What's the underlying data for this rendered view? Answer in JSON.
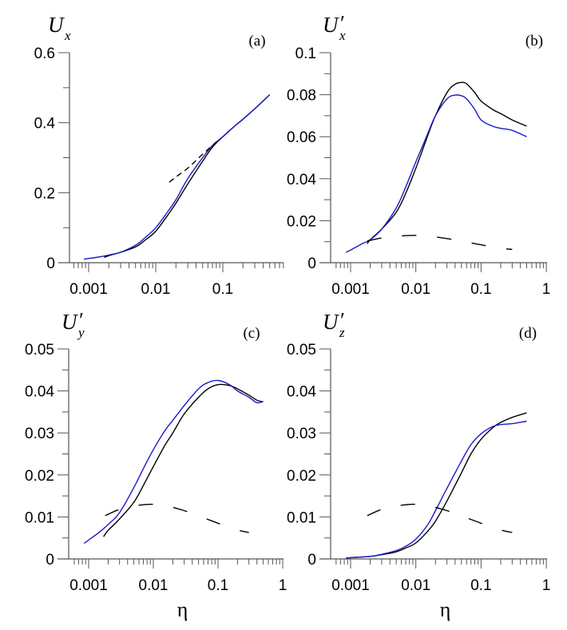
{
  "chart_data": [
    {
      "id": "a",
      "type": "line",
      "panel_label": "(a)",
      "ylabel": {
        "main": "U",
        "sub": "x",
        "prime": false
      },
      "xlabel": "",
      "xscale": "log",
      "xlim": [
        0.0005,
        0.6
      ],
      "ylim": [
        0,
        0.6
      ],
      "yticks_major": [
        0,
        0.2,
        0.4,
        0.6
      ],
      "yticks_major_labels": [
        "0",
        "0.2",
        "0.4",
        "0.6"
      ],
      "yticks_minor": [
        0.1,
        0.3,
        0.5
      ],
      "xticks_major": [
        0.001,
        0.01,
        0.1
      ],
      "xticks_major_labels": [
        "0.001",
        "0.01",
        "0.1"
      ],
      "series": [
        {
          "name": "black-solid",
          "color": "#000000",
          "style": "solid",
          "x": [
            0.0017,
            0.002,
            0.003,
            0.005,
            0.007,
            0.01,
            0.015,
            0.02,
            0.03,
            0.05,
            0.07,
            0.1,
            0.15,
            0.2,
            0.3,
            0.5
          ],
          "y": [
            0.015,
            0.02,
            0.03,
            0.045,
            0.065,
            0.09,
            0.135,
            0.17,
            0.225,
            0.29,
            0.33,
            0.36,
            0.39,
            0.41,
            0.44,
            0.48
          ]
        },
        {
          "name": "blue-solid",
          "color": "#1a1acc",
          "style": "solid",
          "x": [
            0.00085,
            0.001,
            0.0015,
            0.002,
            0.003,
            0.005,
            0.007,
            0.01,
            0.015,
            0.02,
            0.03,
            0.05,
            0.07,
            0.1,
            0.15,
            0.2,
            0.3,
            0.5
          ],
          "y": [
            0.01,
            0.012,
            0.017,
            0.022,
            0.03,
            0.05,
            0.072,
            0.1,
            0.145,
            0.18,
            0.24,
            0.3,
            0.335,
            0.36,
            0.39,
            0.41,
            0.44,
            0.48
          ]
        },
        {
          "name": "black-dashed",
          "color": "#000000",
          "style": "short-dash",
          "x": [
            0.016,
            0.02,
            0.03,
            0.05,
            0.08
          ],
          "y": [
            0.23,
            0.245,
            0.27,
            0.31,
            0.345
          ]
        }
      ]
    },
    {
      "id": "b",
      "type": "line",
      "panel_label": "(b)",
      "ylabel": {
        "main": "U",
        "sub": "x",
        "prime": true
      },
      "xlabel": "",
      "xscale": "log",
      "xlim": [
        0.0005,
        1
      ],
      "ylim": [
        0,
        0.1
      ],
      "yticks_major": [
        0,
        0.02,
        0.04,
        0.06,
        0.08,
        0.1
      ],
      "yticks_major_labels": [
        "0",
        "0.02",
        "0.04",
        "0.06",
        "0.08",
        "0.1"
      ],
      "yticks_minor": [
        0.01,
        0.03,
        0.05,
        0.07,
        0.09
      ],
      "xticks_major": [
        0.001,
        0.01,
        0.1,
        1
      ],
      "xticks_major_labels": [
        "0.001",
        "0.01",
        "0.1",
        "1"
      ],
      "series": [
        {
          "name": "black-solid",
          "color": "#000000",
          "style": "solid",
          "x": [
            0.0018,
            0.002,
            0.003,
            0.005,
            0.007,
            0.01,
            0.015,
            0.02,
            0.03,
            0.04,
            0.05,
            0.06,
            0.08,
            0.1,
            0.15,
            0.2,
            0.3,
            0.5
          ],
          "y": [
            0.009,
            0.011,
            0.016,
            0.024,
            0.033,
            0.045,
            0.06,
            0.07,
            0.081,
            0.085,
            0.0858,
            0.0852,
            0.081,
            0.077,
            0.073,
            0.071,
            0.068,
            0.065
          ]
        },
        {
          "name": "blue-solid",
          "color": "#1a1acc",
          "style": "solid",
          "x": [
            0.00085,
            0.001,
            0.0015,
            0.002,
            0.003,
            0.005,
            0.007,
            0.01,
            0.015,
            0.02,
            0.03,
            0.04,
            0.05,
            0.06,
            0.08,
            0.1,
            0.15,
            0.2,
            0.3,
            0.5
          ],
          "y": [
            0.005,
            0.006,
            0.009,
            0.011,
            0.016,
            0.026,
            0.036,
            0.048,
            0.061,
            0.07,
            0.078,
            0.0798,
            0.0795,
            0.078,
            0.073,
            0.068,
            0.065,
            0.064,
            0.063,
            0.06
          ]
        },
        {
          "name": "black-dashed",
          "color": "#000000",
          "style": "long-dash",
          "x": [
            0.0018,
            0.003,
            0.005,
            0.009,
            0.015,
            0.03,
            0.06,
            0.1,
            0.2,
            0.3
          ],
          "y": [
            0.0103,
            0.0118,
            0.0126,
            0.013,
            0.0127,
            0.0115,
            0.0098,
            0.0085,
            0.0069,
            0.0063
          ]
        }
      ]
    },
    {
      "id": "c",
      "type": "line",
      "panel_label": "(c)",
      "ylabel": {
        "main": "U",
        "sub": "y",
        "prime": true
      },
      "xlabel": "η",
      "xscale": "log",
      "xlim": [
        0.0005,
        1
      ],
      "ylim": [
        0,
        0.05
      ],
      "yticks_major": [
        0,
        0.01,
        0.02,
        0.03,
        0.04,
        0.05
      ],
      "yticks_major_labels": [
        "0",
        "0.01",
        "0.02",
        "0.03",
        "0.04",
        "0.05"
      ],
      "yticks_minor": [
        0.005,
        0.015,
        0.025,
        0.035,
        0.045
      ],
      "xticks_major": [
        0.001,
        0.01,
        0.1,
        1
      ],
      "xticks_major_labels": [
        "0.001",
        "0.01",
        "0.1",
        "1"
      ],
      "series": [
        {
          "name": "black-solid",
          "color": "#000000",
          "style": "solid",
          "x": [
            0.0017,
            0.002,
            0.003,
            0.005,
            0.007,
            0.01,
            0.015,
            0.02,
            0.03,
            0.05,
            0.07,
            0.1,
            0.15,
            0.2,
            0.3,
            0.4,
            0.5
          ],
          "y": [
            0.0053,
            0.0068,
            0.0095,
            0.0135,
            0.0175,
            0.022,
            0.027,
            0.03,
            0.0345,
            0.0385,
            0.0405,
            0.0415,
            0.0413,
            0.0405,
            0.039,
            0.0378,
            0.0374
          ]
        },
        {
          "name": "blue-solid",
          "color": "#1a1acc",
          "style": "solid",
          "x": [
            0.00085,
            0.001,
            0.0015,
            0.002,
            0.003,
            0.005,
            0.007,
            0.01,
            0.015,
            0.02,
            0.03,
            0.05,
            0.07,
            0.1,
            0.15,
            0.2,
            0.3,
            0.4,
            0.5
          ],
          "y": [
            0.0037,
            0.0045,
            0.0065,
            0.0082,
            0.011,
            0.017,
            0.0215,
            0.026,
            0.0305,
            0.033,
            0.0365,
            0.0405,
            0.042,
            0.0425,
            0.0415,
            0.04,
            0.0385,
            0.0372,
            0.0375
          ]
        },
        {
          "name": "black-dashed",
          "color": "#000000",
          "style": "long-dash",
          "x": [
            0.0018,
            0.003,
            0.005,
            0.009,
            0.015,
            0.03,
            0.06,
            0.1,
            0.2,
            0.3
          ],
          "y": [
            0.0103,
            0.0118,
            0.0126,
            0.013,
            0.0127,
            0.0115,
            0.0098,
            0.0085,
            0.0069,
            0.0063
          ]
        }
      ]
    },
    {
      "id": "d",
      "type": "line",
      "panel_label": "(d)",
      "ylabel": {
        "main": "U",
        "sub": "z",
        "prime": true
      },
      "xlabel": "η",
      "xscale": "log",
      "xlim": [
        0.0005,
        1
      ],
      "ylim": [
        0,
        0.05
      ],
      "yticks_major": [
        0,
        0.01,
        0.02,
        0.03,
        0.04,
        0.05
      ],
      "yticks_major_labels": [
        "0",
        "0.01",
        "0.02",
        "0.03",
        "0.04",
        "0.05"
      ],
      "yticks_minor": [
        0.005,
        0.015,
        0.025,
        0.035,
        0.045
      ],
      "xticks_major": [
        0.001,
        0.01,
        0.1,
        1
      ],
      "xticks_major_labels": [
        "0.001",
        "0.01",
        "0.1",
        "1"
      ],
      "series": [
        {
          "name": "black-solid",
          "color": "#000000",
          "style": "solid",
          "x": [
            0.00085,
            0.001,
            0.002,
            0.003,
            0.005,
            0.007,
            0.01,
            0.015,
            0.02,
            0.03,
            0.05,
            0.07,
            0.1,
            0.15,
            0.2,
            0.3,
            0.5
          ],
          "y": [
            0.0002,
            0.0003,
            0.0006,
            0.001,
            0.0017,
            0.0026,
            0.0038,
            0.0065,
            0.009,
            0.0138,
            0.0205,
            0.025,
            0.0285,
            0.0312,
            0.0325,
            0.0337,
            0.0348
          ]
        },
        {
          "name": "blue-solid",
          "color": "#1a1acc",
          "style": "solid",
          "x": [
            0.00085,
            0.001,
            0.002,
            0.003,
            0.005,
            0.007,
            0.01,
            0.015,
            0.02,
            0.03,
            0.05,
            0.07,
            0.1,
            0.15,
            0.2,
            0.3,
            0.5
          ],
          "y": [
            0.0002,
            0.0003,
            0.0006,
            0.0011,
            0.002,
            0.003,
            0.0047,
            0.008,
            0.0115,
            0.0168,
            0.0233,
            0.0272,
            0.0298,
            0.0315,
            0.032,
            0.0322,
            0.0328
          ]
        },
        {
          "name": "black-dashed",
          "color": "#000000",
          "style": "long-dash",
          "x": [
            0.0018,
            0.003,
            0.005,
            0.009,
            0.015,
            0.03,
            0.06,
            0.1,
            0.2,
            0.3
          ],
          "y": [
            0.0103,
            0.0118,
            0.0126,
            0.013,
            0.0127,
            0.0115,
            0.0098,
            0.0085,
            0.0069,
            0.0063
          ]
        }
      ]
    }
  ]
}
